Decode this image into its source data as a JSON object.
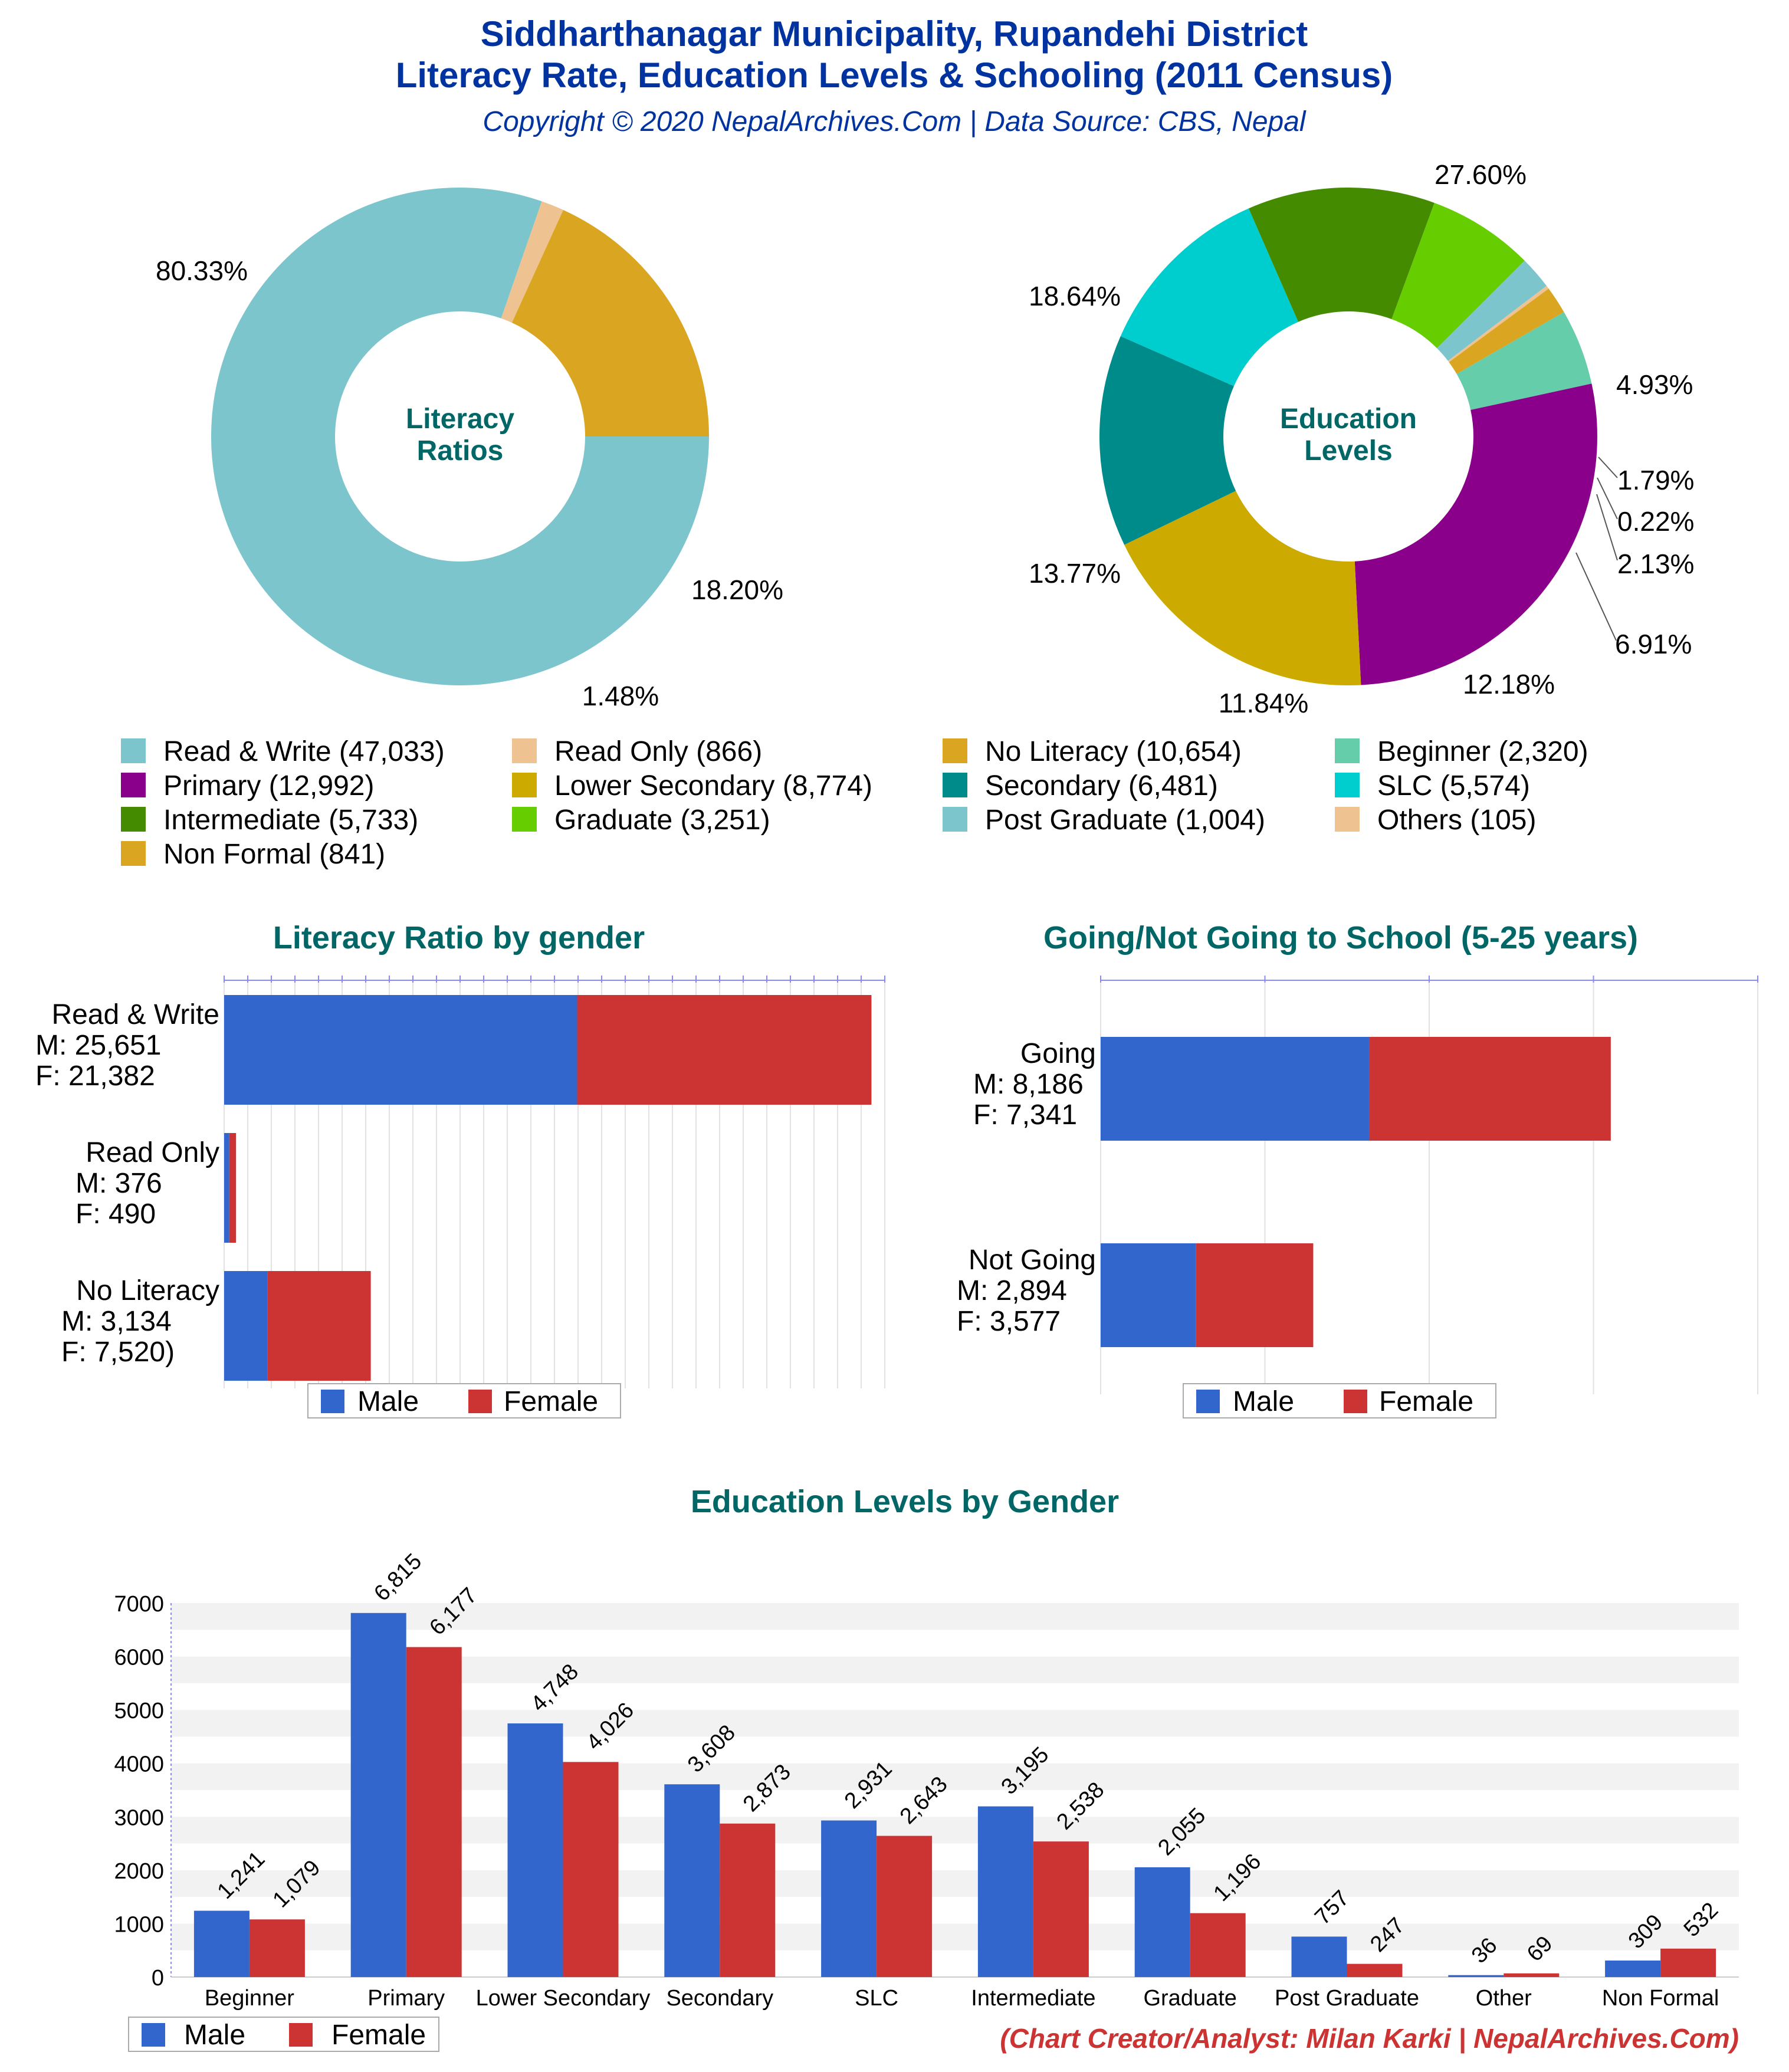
{
  "header": {
    "title_line1": "Siddharthanagar Municipality, Rupandehi District",
    "title_line2": "Literacy Rate, Education Levels & Schooling (2011 Census)",
    "copyright": "Copyright © 2020 NepalArchives.Com | Data Source: CBS, Nepal"
  },
  "footer": {
    "credit": "(Chart Creator/Analyst: Milan Karki | NepalArchives.Com)"
  },
  "colors": {
    "title": "#0033a0",
    "teal_heading": "#006666",
    "male": "#3366cc",
    "female": "#cc3333",
    "credit": "#cc3333"
  },
  "chart_data": [
    {
      "type": "pie",
      "title": "Literacy Ratios",
      "slices": [
        {
          "label": "Read & Write",
          "value": 47033,
          "pct_label": "80.33%",
          "color": "#7cc5cc"
        },
        {
          "label": "Read Only",
          "value": 866,
          "pct_label": "1.48%",
          "color": "#eec291"
        },
        {
          "label": "No Literacy",
          "value": 10654,
          "pct_label": "18.20%",
          "color": "#daa520"
        }
      ]
    },
    {
      "type": "pie",
      "title": "Education Levels",
      "slices": [
        {
          "label": "Beginner",
          "value": 2320,
          "pct_label": "4.93%",
          "color": "#66cdaa"
        },
        {
          "label": "Primary",
          "value": 12992,
          "pct_label": "27.60%",
          "color": "#8b008b"
        },
        {
          "label": "Lower Secondary",
          "value": 8774,
          "pct_label": "18.64%",
          "color": "#ccaa00"
        },
        {
          "label": "Secondary",
          "value": 6481,
          "pct_label": "13.77%",
          "color": "#008b8b"
        },
        {
          "label": "SLC",
          "value": 5574,
          "pct_label": "11.84%",
          "color": "#00cdcd"
        },
        {
          "label": "Intermediate",
          "value": 5733,
          "pct_label": "12.18%",
          "color": "#458b00"
        },
        {
          "label": "Graduate",
          "value": 3251,
          "pct_label": "6.91%",
          "color": "#66cd00"
        },
        {
          "label": "Post Graduate",
          "value": 1004,
          "pct_label": "2.13%",
          "color": "#7cc5cc"
        },
        {
          "label": "Others",
          "value": 105,
          "pct_label": "0.22%",
          "color": "#eec291"
        },
        {
          "label": "Non Formal",
          "value": 841,
          "pct_label": "1.79%",
          "color": "#daa520"
        }
      ]
    },
    {
      "type": "bar",
      "orientation": "horizontal",
      "stacked": true,
      "title": "Literacy Ratio by gender",
      "categories": [
        "Read & Write",
        "Read Only",
        "No Literacy"
      ],
      "category_labels": [
        [
          "Read & Write",
          "M: 25,651",
          "F: 21,382"
        ],
        [
          "Read Only",
          "M: 376",
          "F: 490"
        ],
        [
          "No Literacy",
          "M: 3,134",
          "F: 7,520)"
        ]
      ],
      "series": [
        {
          "name": "Male",
          "values": [
            25651,
            376,
            3134
          ]
        },
        {
          "name": "Female",
          "values": [
            21382,
            490,
            7520
          ]
        }
      ],
      "xlim": [
        0,
        48000
      ],
      "legend": "bottom"
    },
    {
      "type": "bar",
      "orientation": "horizontal",
      "stacked": true,
      "title": "Going/Not Going to School (5-25 years)",
      "categories": [
        "Going",
        "Not Going"
      ],
      "category_labels": [
        [
          "Going",
          "M: 8,186",
          "F: 7,341"
        ],
        [
          "Not Going",
          "M: 2,894",
          "F: 3,577"
        ]
      ],
      "series": [
        {
          "name": "Male",
          "values": [
            8186,
            2894
          ]
        },
        {
          "name": "Female",
          "values": [
            7341,
            3577
          ]
        }
      ],
      "xlim": [
        0,
        20000
      ],
      "legend": "bottom"
    },
    {
      "type": "bar",
      "title": "Education Levels by Gender",
      "categories": [
        "Beginner",
        "Primary",
        "Lower Secondary",
        "Secondary",
        "SLC",
        "Intermediate",
        "Graduate",
        "Post Graduate",
        "Other",
        "Non Formal"
      ],
      "series": [
        {
          "name": "Male",
          "values": [
            1241,
            6815,
            4748,
            3608,
            2931,
            3195,
            2055,
            757,
            36,
            309
          ],
          "value_labels": [
            "1,241",
            "6,815",
            "4,748",
            "3,608",
            "2,931",
            "3,195",
            "2,055",
            "757",
            "36",
            "309"
          ]
        },
        {
          "name": "Female",
          "values": [
            1079,
            6177,
            4026,
            2873,
            2643,
            2538,
            1196,
            247,
            69,
            532
          ],
          "value_labels": [
            "1,079",
            "6,177",
            "4,026",
            "2,873",
            "2,643",
            "2,538",
            "1,196",
            "247",
            "69",
            "532"
          ]
        }
      ],
      "yticks": [
        "0",
        "1000",
        "2000",
        "3000",
        "4000",
        "5000",
        "6000",
        "7000"
      ],
      "ylim": [
        0,
        7000
      ],
      "grid": true,
      "legend": "bottom-left"
    }
  ],
  "legend_grid": [
    {
      "label": "Read & Write (47,033)",
      "color": "#7cc5cc"
    },
    {
      "label": "Read Only (866)",
      "color": "#eec291"
    },
    {
      "label": "No Literacy (10,654)",
      "color": "#daa520"
    },
    {
      "label": "Beginner (2,320)",
      "color": "#66cdaa"
    },
    {
      "label": "Primary (12,992)",
      "color": "#8b008b"
    },
    {
      "label": "Lower Secondary (8,774)",
      "color": "#ccaa00"
    },
    {
      "label": "Secondary (6,481)",
      "color": "#008b8b"
    },
    {
      "label": "SLC (5,574)",
      "color": "#00cdcd"
    },
    {
      "label": "Intermediate (5,733)",
      "color": "#458b00"
    },
    {
      "label": "Graduate (3,251)",
      "color": "#66cd00"
    },
    {
      "label": "Post Graduate (1,004)",
      "color": "#7cc5cc"
    },
    {
      "label": "Others (105)",
      "color": "#eec291"
    },
    {
      "label": "Non Formal (841)",
      "color": "#daa520"
    }
  ],
  "center_labels": {
    "donut1": [
      "Literacy",
      "Ratios"
    ],
    "donut2": [
      "Education",
      "Levels"
    ]
  },
  "gender_legend": {
    "male": "Male",
    "female": "Female"
  }
}
